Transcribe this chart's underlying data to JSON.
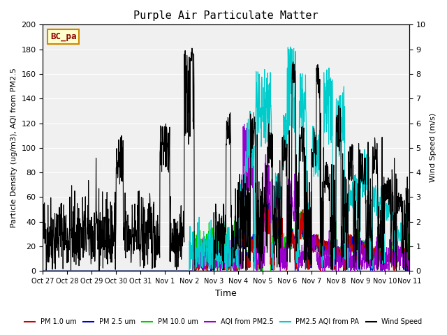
{
  "title": "Purple Air Particulate Matter",
  "xlabel": "Time",
  "ylabel_left": "Particle Density (ug/m3), AQI from PM2.5",
  "ylabel_right": "Wind Speed (m/s)",
  "ylim_left": [
    0,
    200
  ],
  "ylim_right": [
    0.0,
    10.0
  ],
  "background_color": "#f0f0f0",
  "label_box_text": "BC_pa",
  "label_box_bg": "#ffffcc",
  "label_box_edge": "#cc8800",
  "label_box_text_color": "#8b0000",
  "xtick_labels": [
    "Oct 27",
    "Oct 28",
    "Oct 29",
    "Oct 30",
    "Oct 31",
    "Nov 1",
    "Nov 2",
    "Nov 3",
    "Nov 4",
    "Nov 5",
    "Nov 6",
    "Nov 7",
    "Nov 8",
    "Nov 9",
    "Nov 10",
    "Nov 11"
  ],
  "legend": [
    {
      "label": "PM 1.0 um",
      "color": "#cc0000"
    },
    {
      "label": "PM 2.5 um",
      "color": "#0000cc"
    },
    {
      "label": "PM 10.0 um",
      "color": "#00cc00"
    },
    {
      "label": "AQI from PM2.5",
      "color": "#9900cc"
    },
    {
      "label": "PM2.5 AQI from PA",
      "color": "#00cccc"
    },
    {
      "label": "Wind Speed",
      "color": "#000000"
    }
  ]
}
